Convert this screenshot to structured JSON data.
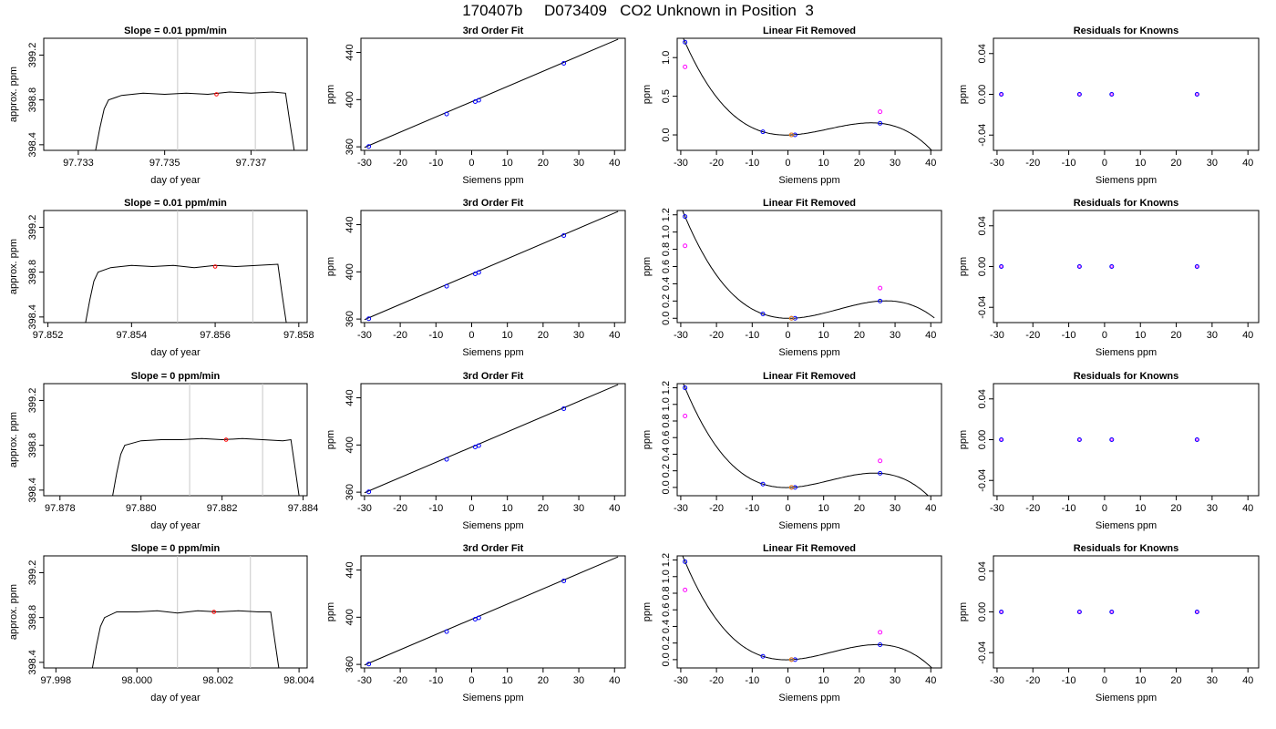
{
  "figure": {
    "title": "170407b     D073409   CO2 Unknown in Position  3"
  },
  "chart_data": [
    {
      "row": 1,
      "col": 1,
      "type": "line",
      "title": "Slope =  0.01  ppm/min",
      "xlabel": "day of year",
      "ylabel": "approx. ppm",
      "xlim": [
        97.7322,
        97.7383
      ],
      "ylim": [
        398.35,
        399.35
      ],
      "xticks": [
        "97.733",
        "97.735",
        "97.737"
      ],
      "yticks": [
        "398.4",
        "398.8",
        "399.2"
      ],
      "vlines": [
        97.7353,
        97.7371
      ],
      "marker": {
        "x": 97.7362,
        "y": 398.85,
        "color": "#ff0000"
      },
      "series": [
        {
          "x": [
            97.7334,
            97.7335,
            97.7336,
            97.7337,
            97.734,
            97.7345,
            97.735,
            97.7355,
            97.736,
            97.7365,
            97.737,
            97.7375,
            97.7378,
            97.7379,
            97.738
          ],
          "y": [
            398.35,
            398.55,
            398.72,
            398.8,
            398.84,
            398.86,
            398.85,
            398.86,
            398.85,
            398.87,
            398.86,
            398.87,
            398.86,
            398.6,
            398.35
          ]
        }
      ]
    },
    {
      "row": 1,
      "col": 2,
      "type": "scatter",
      "title": "3rd Order Fit",
      "xlabel": "Siemens ppm",
      "ylabel": "ppm",
      "xlim": [
        -31,
        43
      ],
      "ylim": [
        357,
        452
      ],
      "xticks": [
        "-30",
        "-20",
        "-10",
        "0",
        "10",
        "20",
        "30",
        "40"
      ],
      "yticks": [
        "360",
        "400",
        "440"
      ],
      "points": [
        {
          "x": -28.8,
          "y": 360.3
        },
        {
          "x": -7.0,
          "y": 387.8
        },
        {
          "x": 1.0,
          "y": 398.3
        },
        {
          "x": 2.0,
          "y": 399.5
        },
        {
          "x": 25.8,
          "y": 430.8
        }
      ],
      "line": {
        "x": [
          -30,
          41
        ],
        "y": [
          359.5,
          451.2
        ]
      }
    },
    {
      "row": 1,
      "col": 3,
      "type": "scatter",
      "title": "Linear Fit Removed",
      "xlabel": "Siemens ppm",
      "ylabel": "ppm",
      "xlim": [
        -31,
        43
      ],
      "ylim": [
        -0.2,
        1.25
      ],
      "xticks": [
        "-30",
        "-20",
        "-10",
        "0",
        "10",
        "20",
        "30",
        "40"
      ],
      "yticks": [
        "0.0",
        "0.5",
        "1.0"
      ],
      "fit_points": [
        {
          "x": -28.8,
          "y": 1.2
        },
        {
          "x": -7.0,
          "y": 0.04
        },
        {
          "x": 1.0,
          "y": 0.0
        },
        {
          "x": 2.0,
          "y": 0.0
        },
        {
          "x": 25.8,
          "y": 0.15
        }
      ],
      "measured_points": [
        {
          "x": -28.8,
          "y": 0.88
        },
        {
          "x": 25.8,
          "y": 0.3
        }
      ],
      "curve_coeffs": [
        0.0,
        -0.0074,
        0.0009,
        -2.4e-05
      ]
    },
    {
      "row": 1,
      "col": 4,
      "type": "scatter",
      "title": "Residuals for Knowns",
      "xlabel": "Siemens ppm",
      "ylabel": "ppm",
      "xlim": [
        -31,
        43
      ],
      "ylim": [
        -0.055,
        0.055
      ],
      "xticks": [
        "-30",
        "-20",
        "-10",
        "0",
        "10",
        "20",
        "30",
        "40"
      ],
      "yticks": [
        "-0.04",
        "0.00",
        "0.04"
      ],
      "points": [
        {
          "x": -28.8,
          "y": 0
        },
        {
          "x": -7.0,
          "y": 0
        },
        {
          "x": 2.0,
          "y": 0
        },
        {
          "x": 25.8,
          "y": 0
        }
      ]
    },
    {
      "row": 2,
      "col": 1,
      "type": "line",
      "title": "Slope =  0.01  ppm/min",
      "xlabel": "day of year",
      "ylabel": "approx. ppm",
      "xlim": [
        97.8519,
        97.8582
      ],
      "ylim": [
        398.35,
        399.35
      ],
      "xticks": [
        "97.852",
        "97.854",
        "97.856",
        "97.858"
      ],
      "yticks": [
        "398.4",
        "398.8",
        "399.2"
      ],
      "vlines": [
        97.8551,
        97.8569
      ],
      "marker": {
        "x": 97.856,
        "y": 398.85,
        "color": "#ff0000"
      },
      "series": [
        {
          "x": [
            97.8529,
            97.853,
            97.8531,
            97.8532,
            97.8535,
            97.854,
            97.8545,
            97.855,
            97.8555,
            97.856,
            97.8565,
            97.857,
            97.8575,
            97.8576,
            97.8577
          ],
          "y": [
            398.35,
            398.55,
            398.72,
            398.8,
            398.84,
            398.86,
            398.85,
            398.86,
            398.84,
            398.86,
            398.85,
            398.86,
            398.87,
            398.6,
            398.35
          ]
        }
      ]
    },
    {
      "row": 2,
      "col": 2,
      "type": "scatter",
      "title": "3rd Order Fit",
      "xlabel": "Siemens ppm",
      "ylabel": "ppm",
      "xlim": [
        -31,
        43
      ],
      "ylim": [
        357,
        452
      ],
      "xticks": [
        "-30",
        "-20",
        "-10",
        "0",
        "10",
        "20",
        "30",
        "40"
      ],
      "yticks": [
        "360",
        "400",
        "440"
      ],
      "points": [
        {
          "x": -28.8,
          "y": 360.3
        },
        {
          "x": -7.0,
          "y": 387.8
        },
        {
          "x": 1.0,
          "y": 398.3
        },
        {
          "x": 2.0,
          "y": 399.5
        },
        {
          "x": 25.8,
          "y": 430.8
        }
      ],
      "line": {
        "x": [
          -30,
          41
        ],
        "y": [
          359.5,
          451.2
        ]
      }
    },
    {
      "row": 2,
      "col": 3,
      "type": "scatter",
      "title": "Linear Fit Removed",
      "xlabel": "Siemens ppm",
      "ylabel": "ppm",
      "xlim": [
        -31,
        43
      ],
      "ylim": [
        -0.05,
        1.25
      ],
      "xticks": [
        "-30",
        "-20",
        "-10",
        "0",
        "10",
        "20",
        "30",
        "40"
      ],
      "yticks": [
        "0.0",
        "0.2",
        "0.4",
        "0.6",
        "0.8",
        "1.0",
        "1.2"
      ],
      "fit_points": [
        {
          "x": -28.8,
          "y": 1.18
        },
        {
          "x": -7.0,
          "y": 0.05
        },
        {
          "x": 1.0,
          "y": 0.0
        },
        {
          "x": 2.0,
          "y": 0.0
        },
        {
          "x": 25.8,
          "y": 0.2
        }
      ],
      "measured_points": [
        {
          "x": -28.8,
          "y": 0.84
        },
        {
          "x": 25.8,
          "y": 0.35
        }
      ],
      "curve_coeffs": [
        0.0,
        -0.0062,
        0.00087,
        -2.1e-05
      ]
    },
    {
      "row": 2,
      "col": 4,
      "type": "scatter",
      "title": "Residuals for Knowns",
      "xlabel": "Siemens ppm",
      "ylabel": "ppm",
      "xlim": [
        -31,
        43
      ],
      "ylim": [
        -0.055,
        0.055
      ],
      "xticks": [
        "-30",
        "-20",
        "-10",
        "0",
        "10",
        "20",
        "30",
        "40"
      ],
      "yticks": [
        "-0.04",
        "0.00",
        "0.04"
      ],
      "points": [
        {
          "x": -28.8,
          "y": 0
        },
        {
          "x": -7.0,
          "y": 0
        },
        {
          "x": 2.0,
          "y": 0
        },
        {
          "x": 25.8,
          "y": 0
        }
      ]
    },
    {
      "row": 3,
      "col": 1,
      "type": "line",
      "title": "Slope =  0  ppm/min",
      "xlabel": "day of year",
      "ylabel": "approx. ppm",
      "xlim": [
        97.8776,
        97.8841
      ],
      "ylim": [
        398.35,
        399.35
      ],
      "xticks": [
        "97.878",
        "97.880",
        "97.882",
        "97.884"
      ],
      "yticks": [
        "398.4",
        "398.8",
        "399.2"
      ],
      "vlines": [
        97.8812,
        97.883
      ],
      "marker": {
        "x": 97.8821,
        "y": 398.85,
        "color": "#ff0000"
      },
      "series": [
        {
          "x": [
            97.8793,
            97.8794,
            97.8795,
            97.8796,
            97.88,
            97.8805,
            97.881,
            97.8815,
            97.882,
            97.8825,
            97.883,
            97.8835,
            97.8837,
            97.8838,
            97.8839
          ],
          "y": [
            398.35,
            398.55,
            398.72,
            398.8,
            398.84,
            398.85,
            398.85,
            398.86,
            398.85,
            398.86,
            398.85,
            398.84,
            398.85,
            398.6,
            398.35
          ]
        }
      ]
    },
    {
      "row": 3,
      "col": 2,
      "type": "scatter",
      "title": "3rd Order Fit",
      "xlabel": "Siemens ppm",
      "ylabel": "ppm",
      "xlim": [
        -31,
        43
      ],
      "ylim": [
        357,
        452
      ],
      "xticks": [
        "-30",
        "-20",
        "-10",
        "0",
        "10",
        "20",
        "30",
        "40"
      ],
      "yticks": [
        "360",
        "400",
        "440"
      ],
      "points": [
        {
          "x": -28.8,
          "y": 360.3
        },
        {
          "x": -7.0,
          "y": 387.8
        },
        {
          "x": 1.0,
          "y": 398.3
        },
        {
          "x": 2.0,
          "y": 399.5
        },
        {
          "x": 25.8,
          "y": 430.8
        }
      ],
      "line": {
        "x": [
          -30,
          41
        ],
        "y": [
          359.5,
          451.2
        ]
      }
    },
    {
      "row": 3,
      "col": 3,
      "type": "scatter",
      "title": "Linear Fit Removed",
      "xlabel": "Siemens ppm",
      "ylabel": "ppm",
      "xlim": [
        -31,
        43
      ],
      "ylim": [
        -0.1,
        1.25
      ],
      "xticks": [
        "-30",
        "-20",
        "-10",
        "0",
        "10",
        "20",
        "30",
        "40"
      ],
      "yticks": [
        "0.0",
        "0.2",
        "0.4",
        "0.6",
        "0.8",
        "1.0",
        "1.2"
      ],
      "fit_points": [
        {
          "x": -28.8,
          "y": 1.2
        },
        {
          "x": -7.0,
          "y": 0.04
        },
        {
          "x": 1.0,
          "y": 0.0
        },
        {
          "x": 2.0,
          "y": 0.0
        },
        {
          "x": 25.8,
          "y": 0.17
        }
      ],
      "measured_points": [
        {
          "x": -28.8,
          "y": 0.86
        },
        {
          "x": 25.8,
          "y": 0.32
        }
      ],
      "curve_coeffs": [
        0.0,
        -0.0068,
        0.00089,
        -2.3e-05
      ]
    },
    {
      "row": 3,
      "col": 4,
      "type": "scatter",
      "title": "Residuals for Knowns",
      "xlabel": "Siemens ppm",
      "ylabel": "ppm",
      "xlim": [
        -31,
        43
      ],
      "ylim": [
        -0.055,
        0.055
      ],
      "xticks": [
        "-30",
        "-20",
        "-10",
        "0",
        "10",
        "20",
        "30",
        "40"
      ],
      "yticks": [
        "-0.04",
        "0.00",
        "0.04"
      ],
      "points": [
        {
          "x": -28.8,
          "y": 0
        },
        {
          "x": -7.0,
          "y": 0
        },
        {
          "x": 2.0,
          "y": 0
        },
        {
          "x": 25.8,
          "y": 0
        }
      ]
    },
    {
      "row": 4,
      "col": 1,
      "type": "line",
      "title": "Slope =  0  ppm/min",
      "xlabel": "day of year",
      "ylabel": "approx. ppm",
      "xlim": [
        97.9977,
        98.0042
      ],
      "ylim": [
        398.35,
        399.35
      ],
      "xticks": [
        "97.998",
        "98.000",
        "98.002",
        "98.004"
      ],
      "yticks": [
        "398.4",
        "398.8",
        "399.2"
      ],
      "vlines": [
        98.001,
        98.0028
      ],
      "marker": {
        "x": 98.0019,
        "y": 398.85,
        "color": "#ff0000"
      },
      "series": [
        {
          "x": [
            97.9989,
            97.999,
            97.9991,
            97.9992,
            97.9995,
            98.0,
            98.0005,
            98.001,
            98.0015,
            98.002,
            98.0025,
            98.003,
            98.0033,
            98.0034,
            98.0035
          ],
          "y": [
            398.35,
            398.55,
            398.72,
            398.8,
            398.85,
            398.85,
            398.86,
            398.84,
            398.86,
            398.85,
            398.86,
            398.85,
            398.85,
            398.6,
            398.35
          ]
        }
      ]
    },
    {
      "row": 4,
      "col": 2,
      "type": "scatter",
      "title": "3rd Order Fit",
      "xlabel": "Siemens ppm",
      "ylabel": "ppm",
      "xlim": [
        -31,
        43
      ],
      "ylim": [
        357,
        452
      ],
      "xticks": [
        "-30",
        "-20",
        "-10",
        "0",
        "10",
        "20",
        "30",
        "40"
      ],
      "yticks": [
        "360",
        "400",
        "440"
      ],
      "points": [
        {
          "x": -28.8,
          "y": 360.3
        },
        {
          "x": -7.0,
          "y": 387.8
        },
        {
          "x": 1.0,
          "y": 398.3
        },
        {
          "x": 2.0,
          "y": 399.5
        },
        {
          "x": 25.8,
          "y": 430.8
        }
      ],
      "line": {
        "x": [
          -30,
          41
        ],
        "y": [
          359.5,
          451.2
        ]
      }
    },
    {
      "row": 4,
      "col": 3,
      "type": "scatter",
      "title": "Linear Fit Removed",
      "xlabel": "Siemens ppm",
      "ylabel": "ppm",
      "xlim": [
        -31,
        43
      ],
      "ylim": [
        -0.1,
        1.25
      ],
      "xticks": [
        "-30",
        "-20",
        "-10",
        "0",
        "10",
        "20",
        "30",
        "40"
      ],
      "yticks": [
        "0.0",
        "0.2",
        "0.4",
        "0.6",
        "0.8",
        "1.0",
        "1.2"
      ],
      "fit_points": [
        {
          "x": -28.8,
          "y": 1.18
        },
        {
          "x": -7.0,
          "y": 0.04
        },
        {
          "x": 1.0,
          "y": 0.0
        },
        {
          "x": 2.0,
          "y": 0.0
        },
        {
          "x": 25.8,
          "y": 0.18
        }
      ],
      "measured_points": [
        {
          "x": -28.8,
          "y": 0.84
        },
        {
          "x": 25.8,
          "y": 0.33
        }
      ],
      "curve_coeffs": [
        0.0,
        -0.0066,
        0.00088,
        -2.2e-05
      ]
    },
    {
      "row": 4,
      "col": 4,
      "type": "scatter",
      "title": "Residuals for Knowns",
      "xlabel": "Siemens ppm",
      "ylabel": "ppm",
      "xlim": [
        -31,
        43
      ],
      "ylim": [
        -0.055,
        0.055
      ],
      "xticks": [
        "-30",
        "-20",
        "-10",
        "0",
        "10",
        "20",
        "30",
        "40"
      ],
      "yticks": [
        "-0.04",
        "0.00",
        "0.04"
      ],
      "points": [
        {
          "x": -28.8,
          "y": 0
        },
        {
          "x": -7.0,
          "y": 0
        },
        {
          "x": 2.0,
          "y": 0
        },
        {
          "x": 25.8,
          "y": 0
        }
      ]
    }
  ]
}
